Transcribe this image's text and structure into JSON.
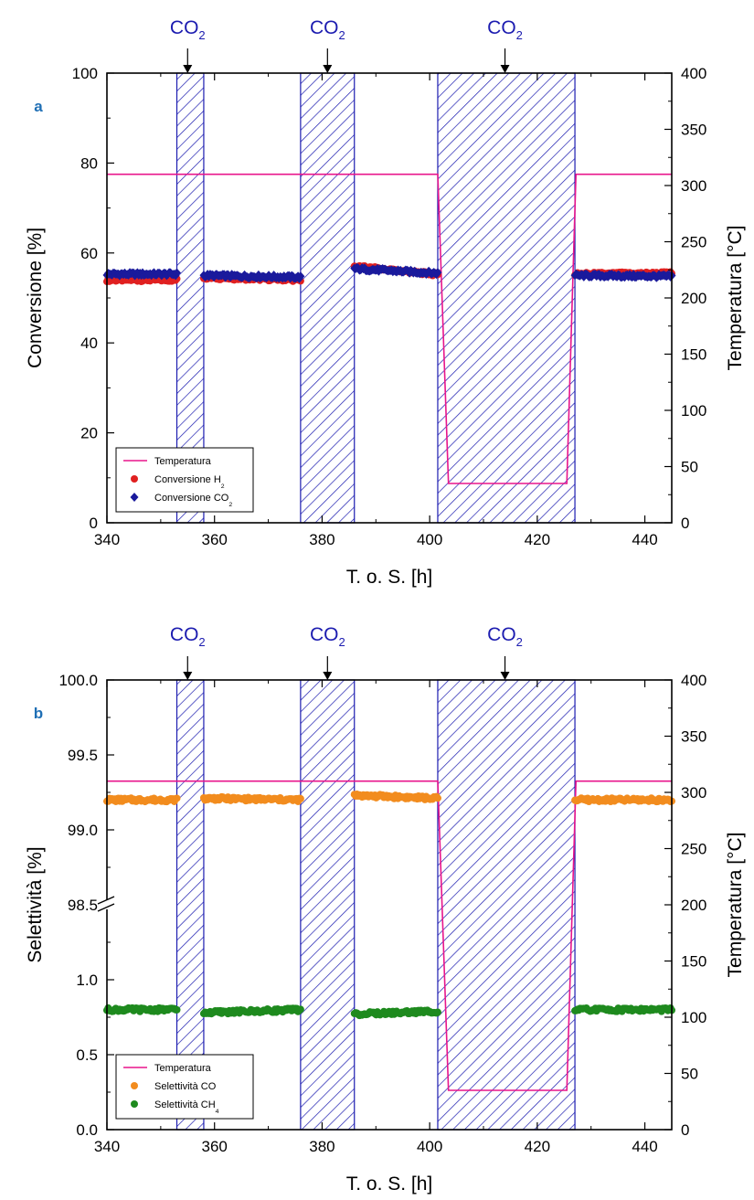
{
  "figure": {
    "co2_label_main": "CO",
    "co2_label_sub": "2",
    "co2_windows": [
      [
        353,
        358
      ],
      [
        376,
        386
      ],
      [
        401.5,
        427
      ]
    ],
    "co2_arrow_x": [
      355,
      381,
      414
    ],
    "hatch_color": "#1c1cb0",
    "hatch_fill": "#ffffff"
  },
  "chart_data": [
    {
      "type": "scatter",
      "panel_label": "a",
      "xlabel": "T. o. S. [h]",
      "ylabel": "Conversione [%]",
      "ylabel_right": "Temperatura [°C]",
      "xlim": [
        340,
        445
      ],
      "ylim": [
        0,
        100
      ],
      "ylim_right": [
        0,
        400
      ],
      "xticks": [
        "340",
        "360",
        "380",
        "400",
        "420",
        "440"
      ],
      "yticks": [
        "0",
        "20",
        "40",
        "60",
        "80",
        "100"
      ],
      "yticks_right": [
        "0",
        "50",
        "100",
        "150",
        "200",
        "250",
        "300",
        "350",
        "400"
      ],
      "legend": {
        "position": "bottom-left",
        "entries": [
          {
            "label": "Temperatura",
            "sub": "",
            "marker": "line",
            "color": "#e8158c"
          },
          {
            "label": "Conversione H",
            "sub": "2",
            "marker": "circle",
            "color": "#e02020"
          },
          {
            "label": "Conversione CO",
            "sub": "2",
            "marker": "diamond",
            "color": "#1a1a9c"
          }
        ]
      },
      "temperature": {
        "color": "#e8158c",
        "x": [
          340,
          401.5,
          403.5,
          425.5,
          427.2,
          445
        ],
        "y": [
          310,
          310,
          35,
          35,
          310,
          310
        ]
      },
      "series": [
        {
          "name": "Conversione H2",
          "color": "#e02020",
          "marker": "circle",
          "segments": [
            {
              "x0": 340,
              "x1": 353,
              "y0": 54.0,
              "y1": 54.0
            },
            {
              "x0": 358,
              "x1": 376,
              "y0": 54.5,
              "y1": 54.0
            },
            {
              "x0": 386,
              "x1": 401.5,
              "y0": 57.0,
              "y1": 55.2
            },
            {
              "x0": 427,
              "x1": 445,
              "y0": 55.3,
              "y1": 55.5
            }
          ]
        },
        {
          "name": "Conversione CO2",
          "color": "#1a1a9c",
          "marker": "diamond",
          "segments": [
            {
              "x0": 340,
              "x1": 353,
              "y0": 55.3,
              "y1": 55.3
            },
            {
              "x0": 358,
              "x1": 376,
              "y0": 55.0,
              "y1": 54.6
            },
            {
              "x0": 386,
              "x1": 401.5,
              "y0": 56.5,
              "y1": 55.5
            },
            {
              "x0": 427,
              "x1": 445,
              "y0": 55.0,
              "y1": 54.8
            }
          ]
        }
      ]
    },
    {
      "type": "scatter",
      "panel_label": "b",
      "xlabel": "T. o. S. [h]",
      "ylabel": "Selettività [%]",
      "ylabel_right": "Temperatura [°C]",
      "xlim": [
        340,
        445
      ],
      "ylim_right": [
        0,
        400
      ],
      "axis_break": {
        "lower": [
          0.0,
          1.5
        ],
        "upper": [
          98.5,
          100.0
        ]
      },
      "xticks": [
        "340",
        "360",
        "380",
        "400",
        "420",
        "440"
      ],
      "yticks": [
        "0.0",
        "0.5",
        "1.0",
        "98.5",
        "99.0",
        "99.5",
        "100.0"
      ],
      "yticks_right": [
        "0",
        "50",
        "100",
        "150",
        "200",
        "250",
        "300",
        "350",
        "400"
      ],
      "legend": {
        "position": "bottom-left",
        "entries": [
          {
            "label": "Temperatura",
            "sub": "",
            "marker": "line",
            "color": "#e8158c"
          },
          {
            "label": "Selettività CO",
            "sub": "",
            "marker": "circle",
            "color": "#f28c1e"
          },
          {
            "label": "Selettività CH",
            "sub": "4",
            "marker": "circle",
            "color": "#1e8a1e"
          }
        ]
      },
      "temperature": {
        "color": "#e8158c",
        "x": [
          340,
          401.5,
          403.5,
          425.5,
          427.2,
          445
        ],
        "y": [
          310,
          310,
          35,
          35,
          310,
          310
        ]
      },
      "series": [
        {
          "name": "Selettività CO",
          "color": "#f28c1e",
          "marker": "circle",
          "segments": [
            {
              "x0": 340,
              "x1": 353,
              "y0": 99.2,
              "y1": 99.2
            },
            {
              "x0": 358,
              "x1": 376,
              "y0": 99.21,
              "y1": 99.2
            },
            {
              "x0": 386,
              "x1": 401.5,
              "y0": 99.23,
              "y1": 99.21
            },
            {
              "x0": 427,
              "x1": 445,
              "y0": 99.2,
              "y1": 99.2
            }
          ]
        },
        {
          "name": "Selettività CH4",
          "color": "#1e8a1e",
          "marker": "circle",
          "segments": [
            {
              "x0": 340,
              "x1": 353,
              "y0": 0.8,
              "y1": 0.8
            },
            {
              "x0": 358,
              "x1": 376,
              "y0": 0.78,
              "y1": 0.8
            },
            {
              "x0": 386,
              "x1": 401.5,
              "y0": 0.77,
              "y1": 0.79
            },
            {
              "x0": 427,
              "x1": 445,
              "y0": 0.8,
              "y1": 0.8
            }
          ]
        }
      ]
    }
  ]
}
